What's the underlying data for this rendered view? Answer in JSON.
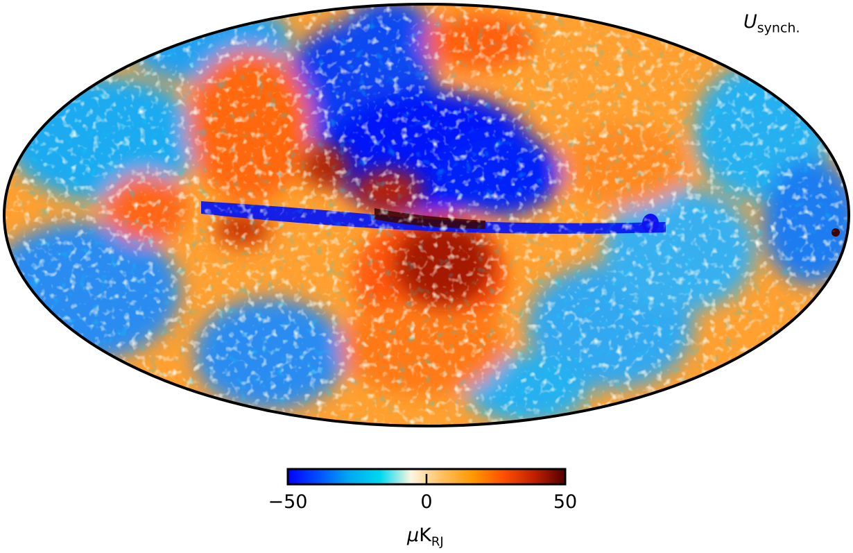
{
  "title": {
    "main": "U",
    "sub": "synch."
  },
  "colorbar": {
    "min": -50,
    "max": 50,
    "ticks": [
      {
        "label": "−50",
        "value": -50
      },
      {
        "label": "0",
        "value": 0
      },
      {
        "label": "50",
        "value": 50
      }
    ],
    "unit": {
      "mu": "μ",
      "main": "K",
      "sub": "RJ"
    },
    "colormap": [
      "#0000ff",
      "#0050ff",
      "#00a8f0",
      "#00d8f0",
      "#fdf6e0",
      "#ffc060",
      "#ff9800",
      "#ff5000",
      "#c02000",
      "#500000"
    ]
  },
  "chart_data": {
    "type": "heatmap",
    "projection": "Mollweide",
    "quantity": "U synch.",
    "range": [
      -50,
      50
    ],
    "features": [
      {
        "region": "galactic plane, center to left",
        "sign": "negative"
      },
      {
        "region": "north above center",
        "sign": "negative"
      },
      {
        "region": "south of center",
        "sign": "positive"
      },
      {
        "region": "northwest lobe",
        "sign": "positive"
      },
      {
        "region": "east edge",
        "sign": "negative"
      },
      {
        "region": "northeast",
        "sign": "positive"
      }
    ]
  }
}
